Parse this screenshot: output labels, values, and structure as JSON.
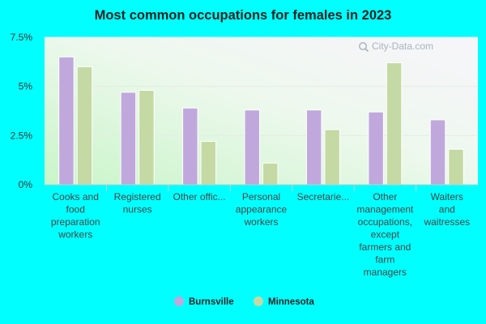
{
  "chart_data": {
    "type": "bar",
    "title": "Most common occupations for females in 2023",
    "categories": [
      [
        "Cooks and",
        "food",
        "preparation",
        "workers"
      ],
      [
        "Registered",
        "nurses"
      ],
      [
        "Other offic..."
      ],
      [
        "Personal",
        "appearance",
        "workers"
      ],
      [
        "Secretarie..."
      ],
      [
        "Other",
        "management",
        "occupations,",
        "except",
        "farmers and",
        "farm",
        "managers"
      ],
      [
        "Waiters",
        "and",
        "waitresses"
      ]
    ],
    "series": [
      {
        "name": "Burnsville",
        "color": "#c0a8dc",
        "values": [
          6.5,
          4.7,
          3.9,
          3.8,
          3.8,
          3.7,
          3.3
        ]
      },
      {
        "name": "Minnesota",
        "color": "#c5d9a4",
        "values": [
          6.0,
          4.8,
          2.2,
          1.1,
          2.8,
          6.2,
          1.8
        ]
      }
    ],
    "yticks": [
      "0%",
      "2.5%",
      "5%",
      "7.5%"
    ],
    "ylim": [
      0,
      7.5
    ],
    "legend_position": "bottom",
    "watermark": "City-Data.com"
  }
}
